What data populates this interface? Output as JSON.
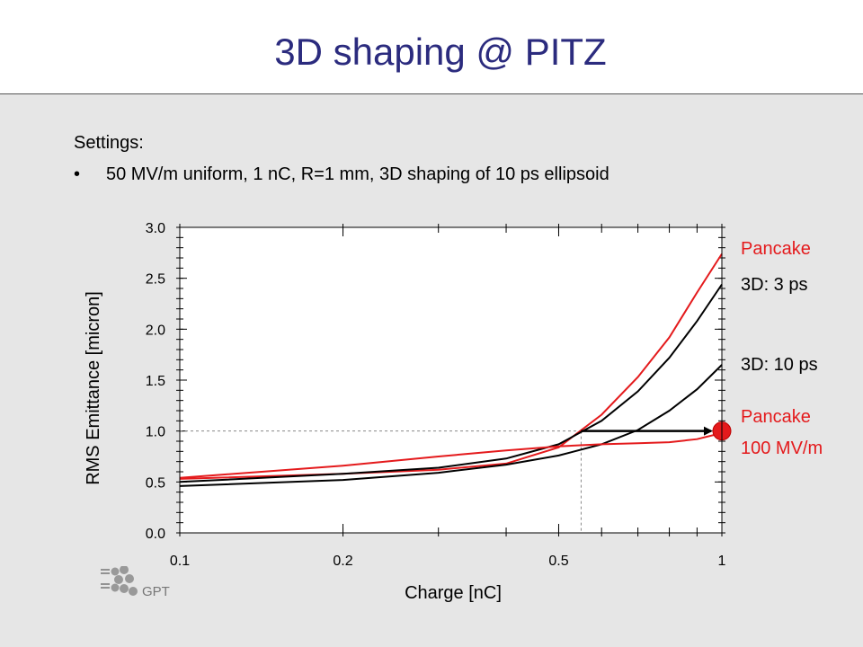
{
  "title": "3D shaping @ PITZ",
  "settings": {
    "label": "Settings:",
    "bullet_marker": "•",
    "bullet": "50 MV/m uniform, 1 nC, R=1 mm, 3D shaping of 10 ps ellipsoid"
  },
  "logo_text": "GPT",
  "chart_data": {
    "type": "line",
    "xlabel": "Charge [nC]",
    "ylabel": "RMS Emittance [micron]",
    "xscale": "log",
    "xlim": [
      0.1,
      1
    ],
    "ylim": [
      0,
      3
    ],
    "xticks": [
      {
        "value": 0.1,
        "label": "0.1"
      },
      {
        "value": 0.2,
        "label": "0.2"
      },
      {
        "value": 0.5,
        "label": "0.5"
      },
      {
        "value": 1,
        "label": "1"
      }
    ],
    "yticks": [
      {
        "value": 0.0,
        "label": "0.0"
      },
      {
        "value": 0.5,
        "label": "0.5"
      },
      {
        "value": 1.0,
        "label": "1.0"
      },
      {
        "value": 1.5,
        "label": "1.5"
      },
      {
        "value": 2.0,
        "label": "2.0"
      },
      {
        "value": 2.5,
        "label": "2.5"
      },
      {
        "value": 3.0,
        "label": "3.0"
      }
    ],
    "series": [
      {
        "name": "Pancake",
        "color": "#e41a1c",
        "x": [
          0.1,
          0.2,
          0.3,
          0.4,
          0.5,
          0.6,
          0.7,
          0.8,
          0.9,
          1.0
        ],
        "y": [
          0.53,
          0.58,
          0.62,
          0.68,
          0.84,
          1.16,
          1.53,
          1.92,
          2.36,
          2.74
        ]
      },
      {
        "name": "3D: 3 ps",
        "color": "#000000",
        "x": [
          0.1,
          0.2,
          0.3,
          0.4,
          0.5,
          0.6,
          0.7,
          0.8,
          0.9,
          1.0
        ],
        "y": [
          0.5,
          0.58,
          0.64,
          0.73,
          0.87,
          1.1,
          1.39,
          1.72,
          2.08,
          2.44
        ]
      },
      {
        "name": "3D: 10 ps",
        "color": "#000000",
        "x": [
          0.1,
          0.2,
          0.3,
          0.4,
          0.5,
          0.6,
          0.7,
          0.8,
          0.9,
          1.0
        ],
        "y": [
          0.46,
          0.52,
          0.59,
          0.67,
          0.76,
          0.87,
          1.01,
          1.2,
          1.41,
          1.65
        ]
      },
      {
        "name": "Pancake 100 MV/m",
        "color": "#e41a1c",
        "x": [
          0.1,
          0.2,
          0.3,
          0.4,
          0.5,
          0.6,
          0.7,
          0.8,
          0.9,
          1.0
        ],
        "y": [
          0.54,
          0.66,
          0.75,
          0.81,
          0.85,
          0.87,
          0.88,
          0.89,
          0.92,
          0.98
        ]
      }
    ],
    "labels": [
      "Pancake",
      "3D: 3 ps",
      "3D: 10 ps",
      "Pancake",
      "100 MV/m"
    ],
    "marker": {
      "x": 1.0,
      "y": 1.0,
      "color": "#e41a1c"
    },
    "reference_line": {
      "y": 1.0,
      "x_intersect": 0.55
    },
    "arrow": {
      "from_x": 0.55,
      "to_x": 1.0,
      "y": 1.0
    },
    "grid": false
  }
}
